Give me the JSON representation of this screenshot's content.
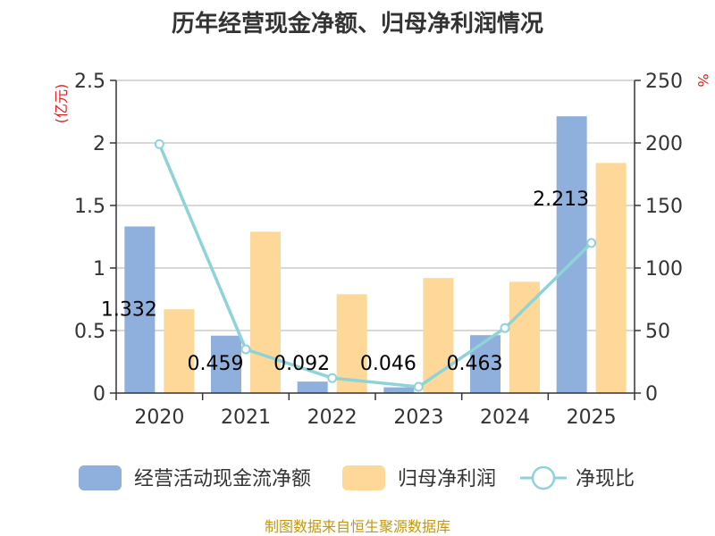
{
  "chart_data": {
    "type": "bar",
    "title": "历年经营现金净额、归母净利润情况",
    "categories": [
      "2020",
      "2021",
      "2022",
      "2023",
      "2024",
      "2025"
    ],
    "left_axis": {
      "unit_label": "(亿元)",
      "ylim": [
        0,
        2.5
      ],
      "ticks": [
        "0",
        "0.5",
        "1",
        "1.5",
        "2",
        "2.5"
      ],
      "tick_values": [
        0,
        0.5,
        1,
        1.5,
        2,
        2.5
      ]
    },
    "right_axis": {
      "unit_label": "%",
      "ylim": [
        0,
        250
      ],
      "ticks": [
        "0",
        "50",
        "100",
        "150",
        "200",
        "250"
      ],
      "tick_values": [
        0,
        50,
        100,
        150,
        200,
        250
      ]
    },
    "series": [
      {
        "name": "经营活动现金流净额",
        "kind": "bar",
        "axis": "left",
        "color": "#8fb0dc",
        "values": [
          1.332,
          0.459,
          0.092,
          0.046,
          0.463,
          2.213
        ],
        "labels": [
          "1.332",
          "0.459",
          "0.092",
          "0.046",
          "0.463",
          "2.213"
        ]
      },
      {
        "name": "归母净利润",
        "kind": "bar",
        "axis": "left",
        "color": "#fdd899",
        "values": [
          0.67,
          1.29,
          0.79,
          0.92,
          0.89,
          1.84
        ]
      },
      {
        "name": "净现比",
        "kind": "line",
        "axis": "right",
        "color": "#8dd3d8",
        "values": [
          199,
          35,
          12,
          5,
          52,
          120
        ]
      }
    ],
    "grid": true,
    "legend_position": "bottom"
  },
  "source_text": "制图数据来自恒生聚源数据库"
}
